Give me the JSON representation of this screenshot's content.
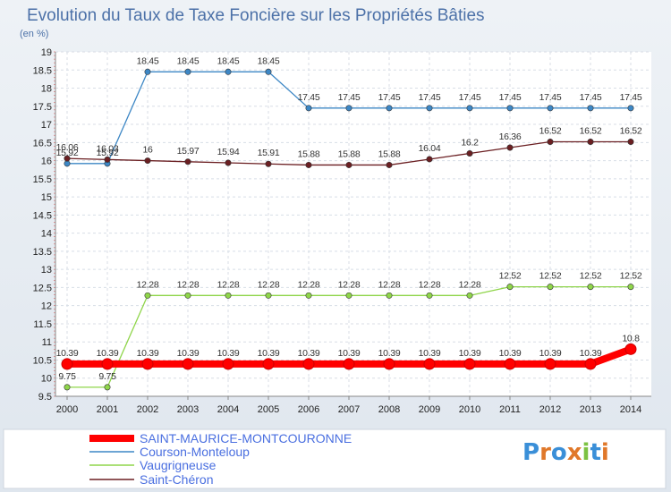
{
  "chart_data": {
    "type": "line",
    "title": "Evolution du Taux de Taxe Foncière sur les Propriétés Bâties",
    "subtitle": "(en %)",
    "xlabel": "",
    "ylabel": "",
    "x": [
      "2000",
      "2001",
      "2002",
      "2003",
      "2004",
      "2005",
      "2006",
      "2007",
      "2008",
      "2009",
      "2010",
      "2011",
      "2012",
      "2013",
      "2014"
    ],
    "ylim": [
      9.5,
      19
    ],
    "yticks": [
      "9.5",
      "10",
      "10.5",
      "11",
      "11.5",
      "12",
      "12.5",
      "13",
      "13.5",
      "14",
      "14.5",
      "15",
      "15.5",
      "16",
      "16.5",
      "17",
      "17.5",
      "18",
      "18.5",
      "19"
    ],
    "grid": true,
    "legend_position": "bottom-left",
    "series": [
      {
        "name": "SAINT-MAURICE-MONTCOURONNE",
        "color": "#ff0000",
        "values": [
          10.39,
          10.39,
          10.39,
          10.39,
          10.39,
          10.39,
          10.39,
          10.39,
          10.39,
          10.39,
          10.39,
          10.39,
          10.39,
          10.39,
          10.8
        ],
        "labels": [
          "10.39",
          "10.39",
          "10.39",
          "10.39",
          "10.39",
          "10.39",
          "10.39",
          "10.39",
          "10.39",
          "10.39",
          "10.39",
          "10.39",
          "10.39",
          "10.39",
          "10.8"
        ]
      },
      {
        "name": "Courson-Monteloup",
        "color": "#3d87c5",
        "values": [
          15.92,
          15.92,
          18.45,
          18.45,
          18.45,
          18.45,
          17.45,
          17.45,
          17.45,
          17.45,
          17.45,
          17.45,
          17.45,
          17.45,
          17.45
        ],
        "labels": [
          "15.92",
          "15.92",
          "18.45",
          "18.45",
          "18.45",
          "18.45",
          "17.45",
          "17.45",
          "17.45",
          "17.45",
          "17.45",
          "17.45",
          "17.45",
          "17.45",
          "17.45"
        ]
      },
      {
        "name": "Vaugrigneuse",
        "color": "#8fd54a",
        "values": [
          9.75,
          9.75,
          12.28,
          12.28,
          12.28,
          12.28,
          12.28,
          12.28,
          12.28,
          12.28,
          12.28,
          12.52,
          12.52,
          12.52,
          12.52
        ],
        "labels": [
          "9.75",
          "9.75",
          "12.28",
          "12.28",
          "12.28",
          "12.28",
          "12.28",
          "12.28",
          "12.28",
          "12.28",
          "12.28",
          "12.52",
          "12.52",
          "12.52",
          "12.52"
        ]
      },
      {
        "name": "Saint-Chéron",
        "color": "#6b1f22",
        "values": [
          16.06,
          16.03,
          16,
          15.97,
          15.94,
          15.91,
          15.88,
          15.88,
          15.88,
          16.04,
          16.2,
          16.36,
          16.52,
          16.52,
          16.52
        ],
        "labels": [
          "16.06",
          "16.03",
          "16",
          "15.97",
          "15.94",
          "15.91",
          "15.88",
          "15.88",
          "15.88",
          "16.04",
          "16.2",
          "16.36",
          "16.52",
          "16.52",
          "16.52"
        ]
      }
    ]
  },
  "branding": {
    "logo_text": "Proxiti"
  }
}
